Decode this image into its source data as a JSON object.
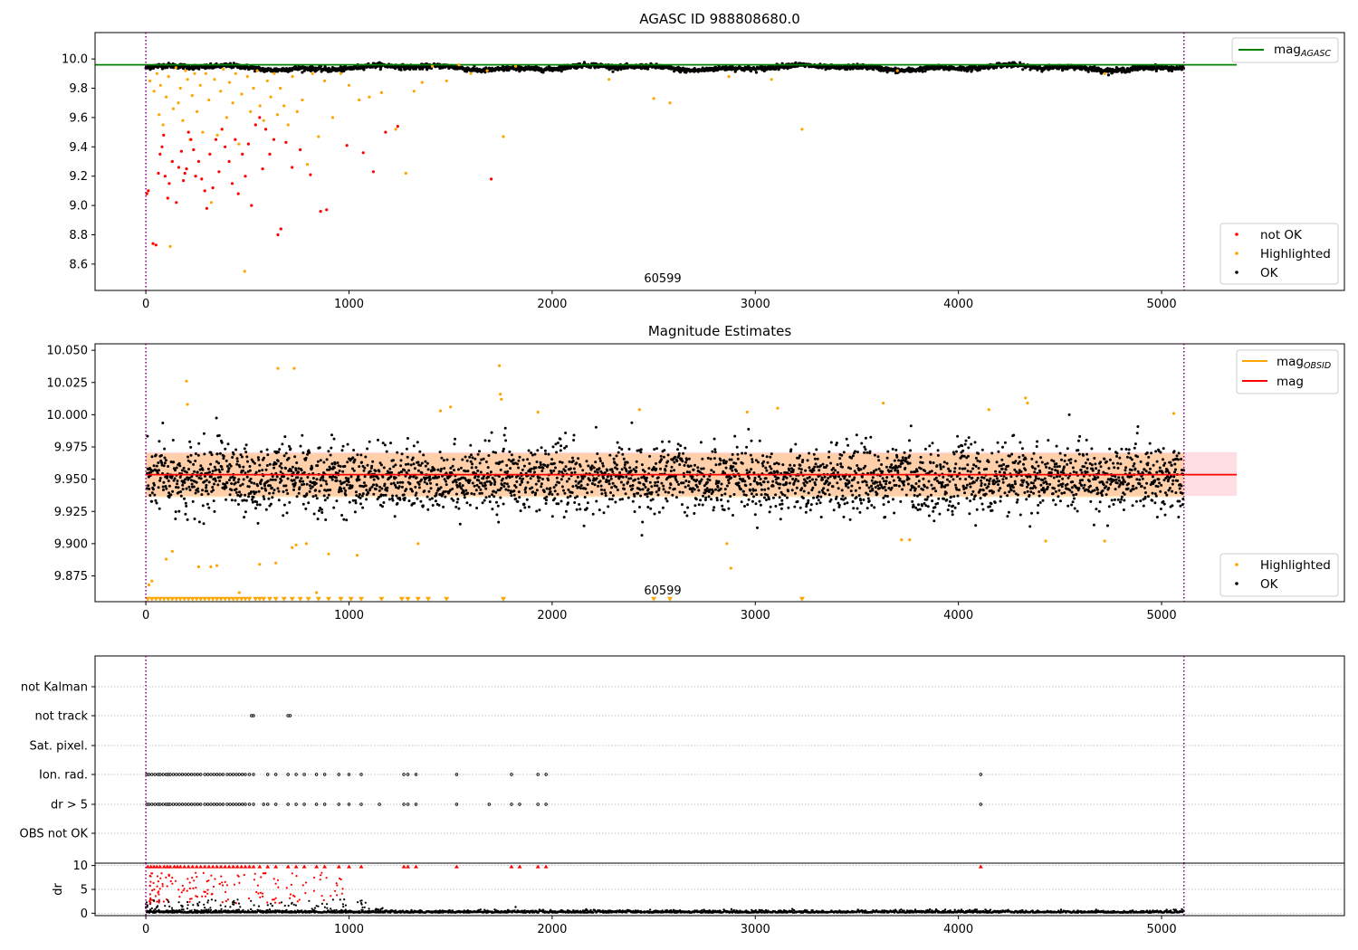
{
  "colors": {
    "ok": "#000000",
    "not_ok": "#ff0000",
    "highlighted": "#ffa500",
    "mag_agasc": "#008000",
    "mag": "#ff0000",
    "mag_obsid": "#ffa500",
    "interval_line": "#800080",
    "band": "#ffb6c1"
  },
  "chart_data": [
    {
      "type": "scatter",
      "title": "AGASC ID 988808680.0",
      "xlabel": "",
      "ylabel": "",
      "xlim": [
        -250,
        5900
      ],
      "ylim": [
        8.42,
        10.18
      ],
      "yticks": [
        8.6,
        8.8,
        9.0,
        9.2,
        9.4,
        9.6,
        9.8,
        10.0
      ],
      "ytick_labels": [
        "8.6",
        "8.8",
        "9.0",
        "9.2",
        "9.4",
        "9.6",
        "9.8",
        "10.0"
      ],
      "xticks": [
        0,
        1000,
        2000,
        3000,
        4000,
        5000
      ],
      "xtick_labels": [
        "0",
        "1000",
        "2000",
        "3000",
        "4000",
        "5000"
      ],
      "vlines": [
        0,
        5110
      ],
      "annotation": {
        "text": "60599",
        "x": 2550
      },
      "mag_agasc": 9.96,
      "series": [
        {
          "name": "not OK",
          "x": [
            5,
            12,
            35,
            50,
            62,
            70,
            80,
            88,
            95,
            108,
            115,
            130,
            150,
            162,
            175,
            185,
            192,
            200,
            210,
            222,
            235,
            245,
            260,
            275,
            290,
            300,
            315,
            330,
            345,
            360,
            375,
            390,
            410,
            425,
            440,
            455,
            475,
            490,
            505,
            520,
            540,
            560,
            575,
            590,
            610,
            630,
            650,
            665,
            690,
            720,
            760,
            810,
            860,
            890,
            990,
            1070,
            1120,
            1180,
            1240,
            1700
          ],
          "y": [
            9.08,
            9.1,
            8.74,
            8.73,
            9.22,
            9.35,
            9.4,
            9.48,
            9.2,
            9.05,
            9.15,
            9.3,
            9.02,
            9.26,
            9.37,
            9.17,
            9.22,
            9.25,
            9.5,
            9.45,
            9.38,
            9.2,
            9.3,
            9.18,
            9.1,
            8.98,
            9.35,
            9.12,
            9.45,
            9.23,
            9.52,
            9.4,
            9.3,
            9.15,
            9.45,
            9.08,
            9.35,
            9.2,
            9.42,
            9.0,
            9.55,
            9.6,
            9.25,
            9.52,
            9.35,
            9.45,
            8.8,
            8.84,
            9.43,
            9.26,
            9.38,
            9.21,
            8.96,
            8.97,
            9.41,
            9.36,
            9.23,
            9.5,
            9.54,
            9.18
          ]
        },
        {
          "name": "Highlighted",
          "x": [
            20,
            40,
            55,
            65,
            72,
            85,
            100,
            112,
            120,
            135,
            148,
            160,
            170,
            182,
            195,
            205,
            218,
            228,
            240,
            252,
            268,
            280,
            295,
            310,
            322,
            338,
            352,
            368,
            382,
            398,
            412,
            428,
            442,
            458,
            472,
            486,
            500,
            515,
            530,
            548,
            562,
            580,
            598,
            615,
            632,
            648,
            662,
            680,
            700,
            722,
            745,
            770,
            795,
            820,
            850,
            880,
            920,
            960,
            1000,
            1050,
            1100,
            1160,
            1230,
            1280,
            1320,
            1360,
            1410,
            1480,
            1540,
            1600,
            1680,
            1760,
            1820,
            2280,
            2500,
            2580,
            2870,
            3080,
            3230,
            3700,
            4720
          ],
          "y": [
            9.85,
            9.78,
            9.9,
            9.62,
            9.82,
            9.55,
            9.74,
            9.88,
            8.72,
            9.66,
            9.94,
            9.7,
            9.8,
            9.58,
            9.92,
            9.86,
            9.45,
            9.75,
            9.9,
            9.64,
            9.82,
            9.5,
            9.9,
            9.72,
            9.02,
            9.86,
            9.48,
            9.78,
            9.93,
            9.6,
            9.84,
            9.7,
            9.9,
            9.42,
            9.76,
            8.55,
            9.88,
            9.64,
            9.8,
            9.92,
            9.68,
            9.58,
            9.85,
            9.74,
            9.9,
            9.62,
            9.8,
            9.68,
            9.55,
            9.88,
            9.64,
            9.72,
            9.28,
            9.9,
            9.47,
            9.85,
            9.6,
            9.9,
            9.82,
            9.72,
            9.74,
            9.77,
            9.52,
            9.22,
            9.78,
            9.84,
            9.95,
            9.85,
            9.96,
            9.9,
            9.92,
            9.47,
            9.95,
            9.86,
            9.73,
            9.7,
            9.88,
            9.86,
            9.52,
            9.92,
            9.9
          ]
        },
        {
          "name": "OK",
          "band": {
            "xmin": 0,
            "xmax": 5110,
            "center": 9.955,
            "halfwidth": 0.022
          }
        }
      ],
      "legend": [
        {
          "label": "mag",
          "sub": "AGASC",
          "placement": "top-right"
        },
        {
          "label": "not OK",
          "placement": "bottom-right"
        },
        {
          "label": "Highlighted",
          "placement": "bottom-right"
        },
        {
          "label": "OK",
          "placement": "bottom-right"
        }
      ]
    },
    {
      "type": "scatter",
      "title": "Magnitude Estimates",
      "xlim": [
        -250,
        5900
      ],
      "ylim": [
        9.855,
        10.055
      ],
      "yticks": [
        9.875,
        9.9,
        9.925,
        9.95,
        9.975,
        10.0,
        10.025,
        10.05
      ],
      "ytick_labels": [
        "9.875",
        "9.900",
        "9.925",
        "9.950",
        "9.975",
        "10.000",
        "10.025",
        "10.050"
      ],
      "xticks": [
        0,
        1000,
        2000,
        3000,
        4000,
        5000
      ],
      "xtick_labels": [
        "0",
        "1000",
        "2000",
        "3000",
        "4000",
        "5000"
      ],
      "vlines": [
        0,
        5110
      ],
      "annotation": {
        "text": "60599",
        "x": 2550
      },
      "mag": 9.9535,
      "mag_band": [
        9.937,
        9.971
      ],
      "mag_obsid": {
        "xmin": 0,
        "xmax": 5110,
        "low": 9.936,
        "high": 9.97
      },
      "highlighted_upper": {
        "x": [
          200,
          205,
          650,
          730,
          1740,
          1745,
          1750,
          1450,
          1500,
          1930,
          2430,
          2960,
          3110,
          3630,
          4150,
          4330,
          4340,
          5060
        ],
        "y": [
          10.026,
          10.008,
          10.036,
          10.036,
          10.038,
          10.016,
          10.012,
          10.003,
          10.006,
          10.002,
          10.004,
          10.002,
          10.005,
          10.009,
          10.004,
          10.013,
          10.009,
          10.001
        ]
      },
      "highlighted_low": {
        "x": [
          15,
          30,
          100,
          130,
          260,
          320,
          350,
          460,
          560,
          640,
          720,
          740,
          790,
          840,
          900,
          1040,
          1340,
          2860,
          2880,
          3720,
          3760,
          4430,
          4720
        ],
        "y": [
          9.868,
          9.871,
          9.888,
          9.894,
          9.882,
          9.882,
          9.883,
          9.862,
          9.884,
          9.885,
          9.897,
          9.899,
          9.9,
          9.862,
          9.892,
          9.891,
          9.9,
          9.9,
          9.881,
          9.903,
          9.903,
          9.902,
          9.902
        ]
      },
      "floor_markers": {
        "y": 9.857,
        "x": [
          10,
          30,
          50,
          70,
          90,
          110,
          130,
          150,
          170,
          190,
          210,
          230,
          250,
          270,
          290,
          310,
          330,
          350,
          370,
          390,
          410,
          430,
          450,
          470,
          490,
          510,
          540,
          560,
          580,
          610,
          640,
          680,
          720,
          760,
          800,
          850,
          900,
          960,
          1010,
          1060,
          1160,
          1260,
          1290,
          1340,
          1390,
          1480,
          1760,
          2500,
          2580,
          3230
        ]
      },
      "legend": [
        {
          "label": "mag",
          "sub": "OBSID",
          "placement": "top-right"
        },
        {
          "label": "mag",
          "placement": "top-right"
        },
        {
          "label": "Highlighted",
          "placement": "bottom-right"
        },
        {
          "label": "OK",
          "placement": "bottom-right"
        }
      ]
    },
    {
      "type": "scatter",
      "title": "",
      "xlim": [
        -250,
        5900
      ],
      "categories": [
        "not Kalman",
        "not track",
        "Sat. pixel.",
        "Ion. rad.",
        "dr > 5",
        "OBS not OK"
      ],
      "flags": {
        "not track": [
          520,
          530,
          700,
          710
        ],
        "Ion. rad.": [
          5,
          15,
          30,
          45,
          60,
          70,
          85,
          100,
          110,
          120,
          135,
          150,
          165,
          180,
          195,
          210,
          225,
          240,
          255,
          270,
          290,
          305,
          320,
          335,
          350,
          365,
          380,
          400,
          415,
          430,
          445,
          460,
          475,
          490,
          510,
          530,
          600,
          640,
          700,
          740,
          780,
          840,
          880,
          950,
          1000,
          1060,
          1270,
          1290,
          1330,
          1530,
          1800,
          1930,
          1970,
          4110
        ],
        "dr > 5": [
          5,
          15,
          30,
          45,
          60,
          70,
          85,
          100,
          110,
          120,
          135,
          150,
          165,
          180,
          195,
          210,
          225,
          240,
          255,
          270,
          290,
          305,
          320,
          335,
          350,
          365,
          380,
          400,
          415,
          430,
          445,
          460,
          475,
          490,
          510,
          530,
          580,
          600,
          640,
          700,
          740,
          780,
          840,
          880,
          950,
          1000,
          1060,
          1150,
          1270,
          1290,
          1330,
          1530,
          1690,
          1800,
          1840,
          1930,
          1970,
          4110
        ]
      },
      "vlines": [
        0,
        5110
      ]
    },
    {
      "type": "scatter",
      "title": "",
      "xlim": [
        -250,
        5900
      ],
      "ylim": [
        -0.5,
        10.5
      ],
      "ylabel": "dr",
      "yticks": [
        0,
        5,
        10
      ],
      "ytick_labels": [
        "0",
        "5",
        "10"
      ],
      "xticks": [
        0,
        1000,
        2000,
        3000,
        4000,
        5000
      ],
      "xtick_labels": [
        "0",
        "1000",
        "2000",
        "3000",
        "4000",
        "5000"
      ],
      "vlines": [
        0,
        5110
      ],
      "capped_x": [
        10,
        25,
        40,
        55,
        70,
        90,
        105,
        120,
        140,
        155,
        170,
        190,
        210,
        230,
        250,
        270,
        290,
        310,
        330,
        350,
        370,
        390,
        410,
        430,
        450,
        470,
        490,
        510,
        530,
        560,
        600,
        640,
        700,
        740,
        780,
        840,
        880,
        950,
        1000,
        1060,
        1270,
        1290,
        1330,
        1530,
        1800,
        1840,
        1930,
        1970,
        4110
      ]
    }
  ]
}
